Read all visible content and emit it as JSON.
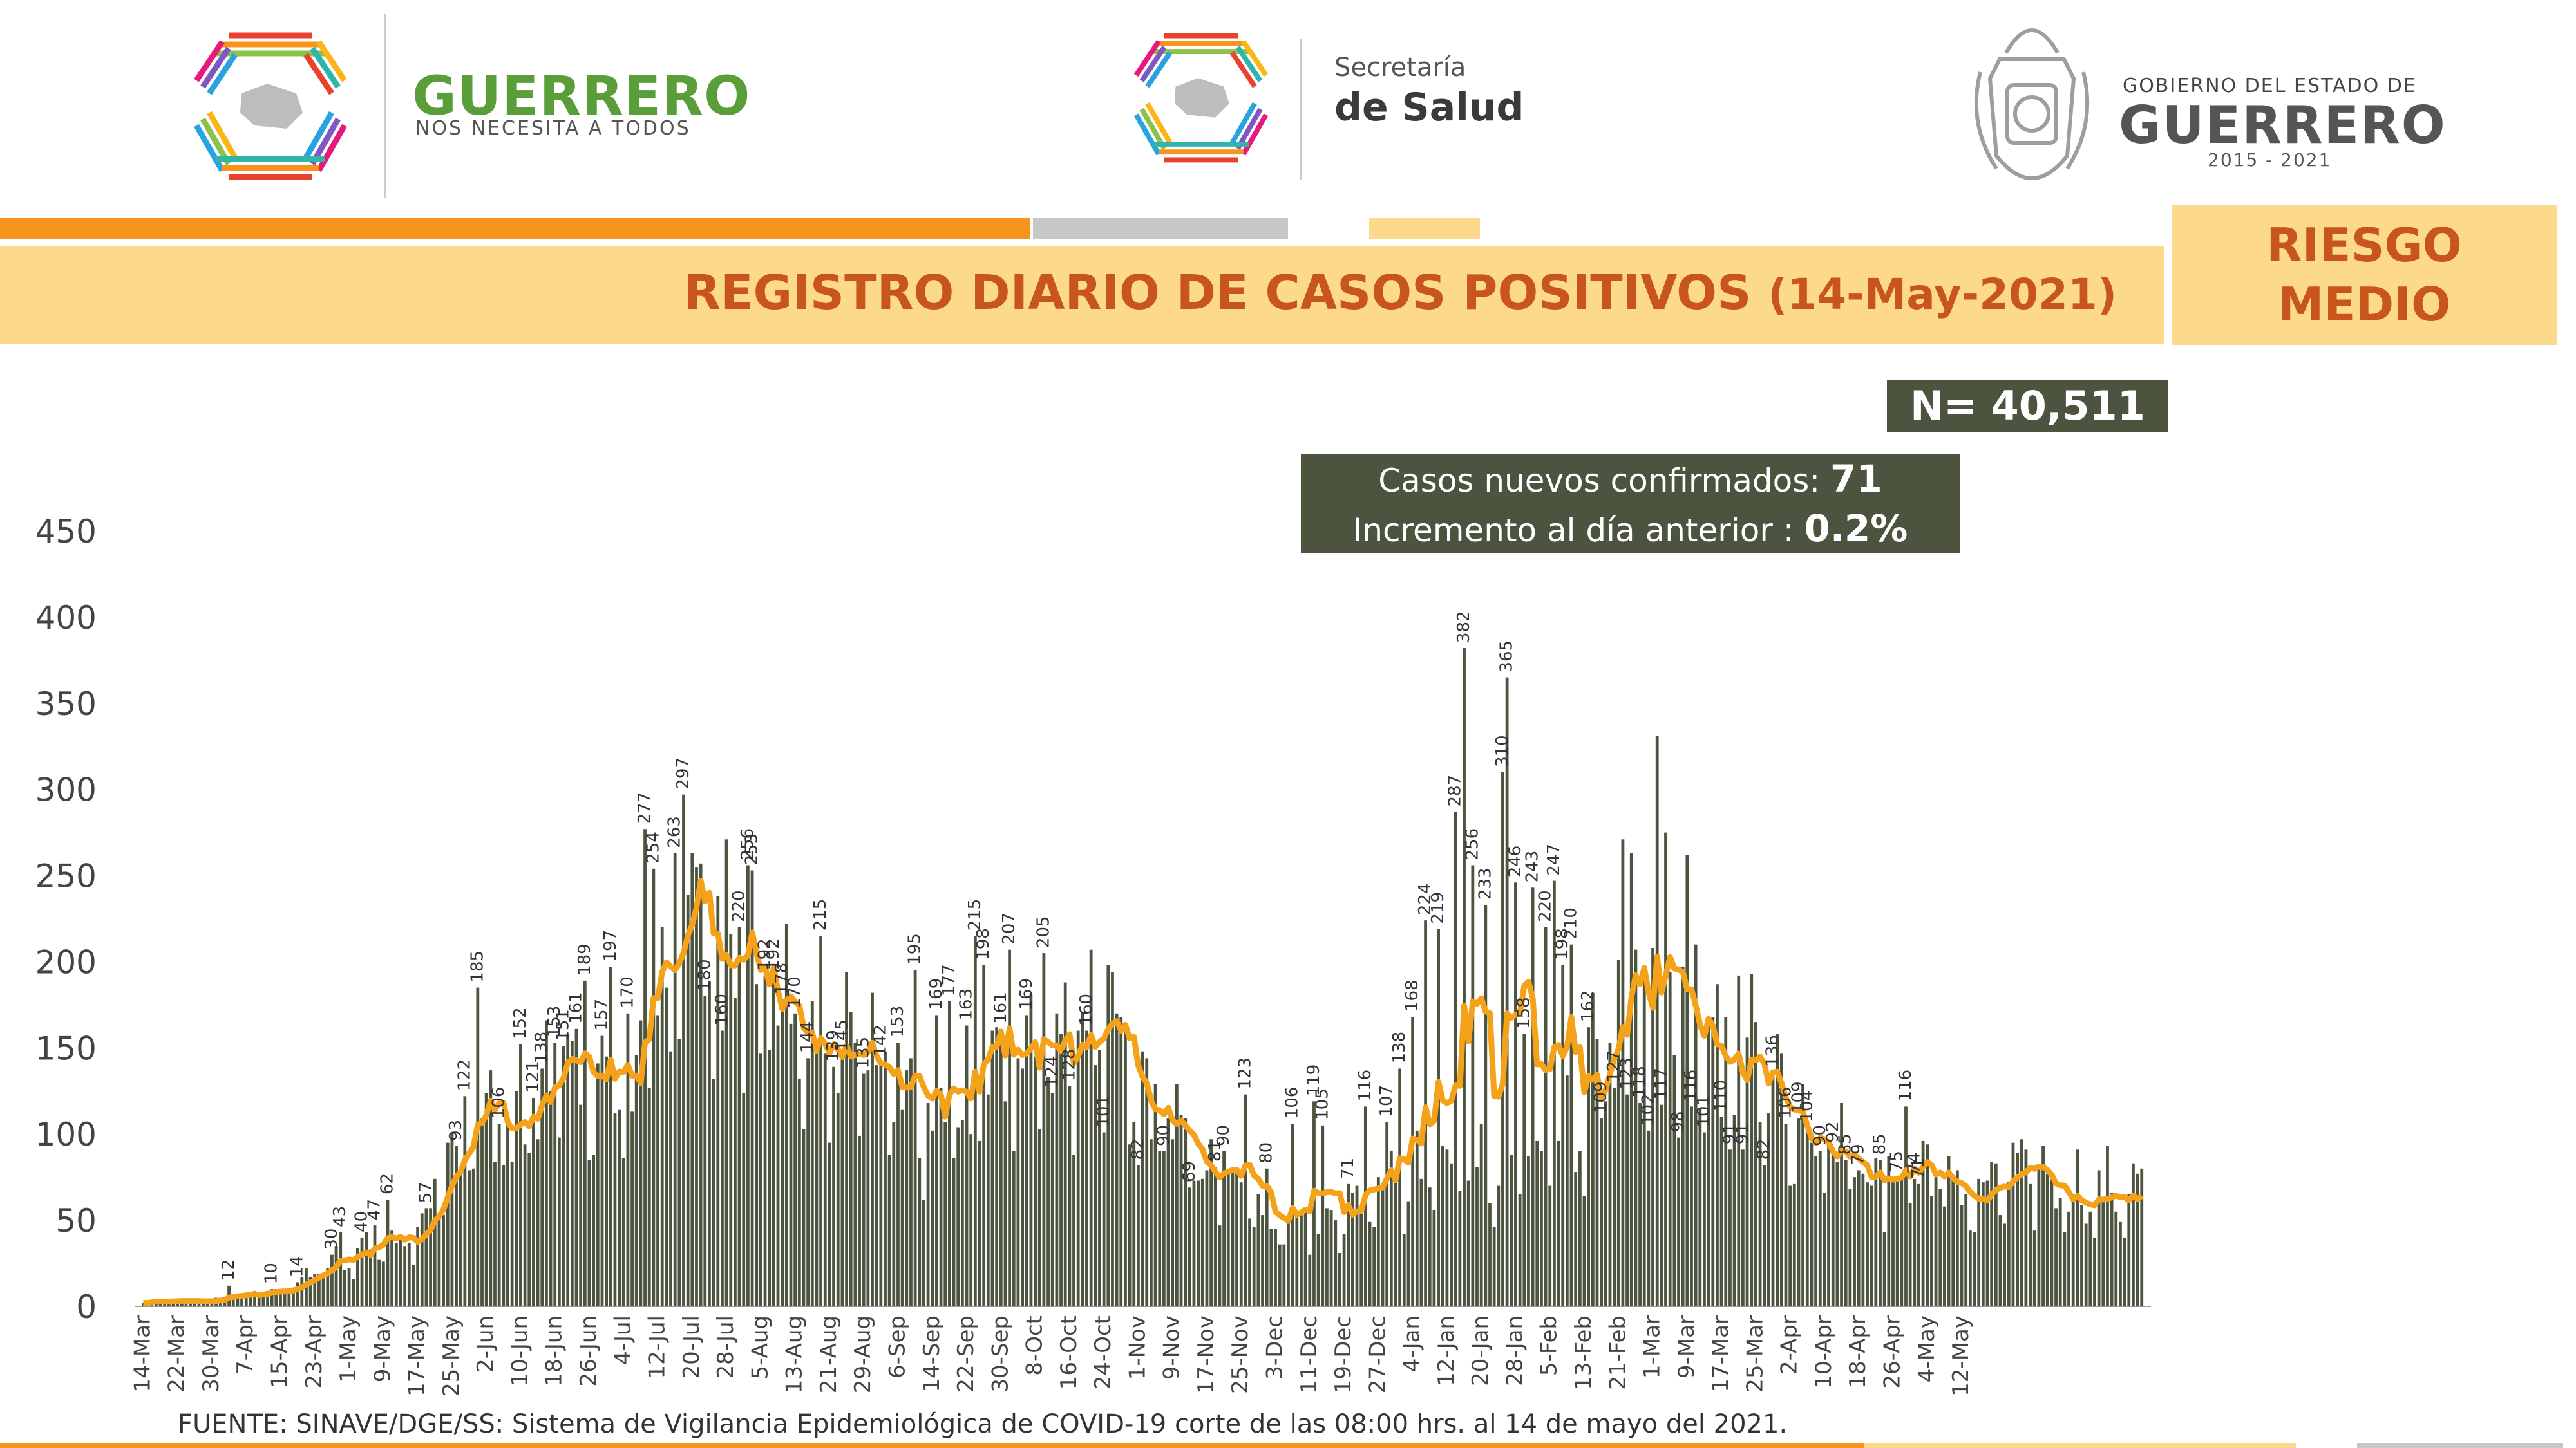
{
  "header": {
    "left_logo_line1": "GUERRERO",
    "left_logo_line2": "NOS NECESITA A TODOS",
    "center_logo_line1": "Secretaría",
    "center_logo_line2": "de Salud",
    "right_logo_line1": "GOBIERNO DEL ESTADO DE",
    "right_logo_line2": "GUERRERO",
    "right_logo_line3": "2015 - 2021"
  },
  "title": "REGISTRO DIARIO DE CASOS POSITIVOS",
  "title_date": "(14-May-2021)",
  "risk_line1": "RIESGO",
  "risk_line2": "MEDIO",
  "total_label": "N= 40,511",
  "new_cases_label": "Casos nuevos confirmados:",
  "new_cases_value": "71",
  "increase_label": "Incremento al día anterior :",
  "increase_value": "0.2%",
  "source": "FUENTE: SINAVE/DGE/SS: Sistema de Vigilancia Epidemiológica de COVID-19 corte de las 08:00 hrs. al 14 de mayo del 2021.",
  "colors": {
    "bar": "#4c5440",
    "moving_average": "#f5a21b",
    "accent_orange": "#f7941d",
    "title_text": "#c8561c",
    "band": "#fdd98c",
    "gray": "#c8c8c8"
  },
  "chart_data": {
    "type": "bar",
    "ylim": [
      0,
      450
    ],
    "yticks": [
      "0",
      "50",
      "100",
      "150",
      "200",
      "250",
      "300",
      "350",
      "400",
      "450"
    ],
    "x_tick_labels": [
      "14-Mar",
      "22-Mar",
      "30-Mar",
      "7-Apr",
      "15-Apr",
      "23-Apr",
      "1-May",
      "9-May",
      "17-May",
      "25-May",
      "2-Jun",
      "10-Jun",
      "18-Jun",
      "26-Jun",
      "4-Jul",
      "12-Jul",
      "20-Jul",
      "28-Jul",
      "5-Aug",
      "13-Aug",
      "21-Aug",
      "29-Aug",
      "6-Sep",
      "14-Sep",
      "22-Sep",
      "30-Sep",
      "8-Oct",
      "16-Oct",
      "24-Oct",
      "1-Nov",
      "9-Nov",
      "17-Nov",
      "25-Nov",
      "3-Dec",
      "11-Dec",
      "19-Dec",
      "27-Dec",
      "4-Jan",
      "12-Jan",
      "20-Jan",
      "28-Jan",
      "5-Feb",
      "13-Feb",
      "21-Feb",
      "1-Mar",
      "9-Mar",
      "17-Mar",
      "25-Mar",
      "2-Apr",
      "10-Apr",
      "18-Apr",
      "26-Apr",
      "4-May",
      "12-May"
    ],
    "start_date": "14-Mar",
    "end_date": "14-May",
    "anchors": [
      [
        0,
        2
      ],
      [
        7,
        3
      ],
      [
        14,
        3
      ],
      [
        21,
        5
      ],
      [
        28,
        8
      ],
      [
        35,
        12
      ],
      [
        42,
        22
      ],
      [
        49,
        28
      ],
      [
        56,
        38
      ],
      [
        63,
        45
      ],
      [
        70,
        72
      ],
      [
        77,
        110
      ],
      [
        84,
        95
      ],
      [
        91,
        100
      ],
      [
        98,
        125
      ],
      [
        105,
        140
      ],
      [
        112,
        125
      ],
      [
        119,
        145
      ],
      [
        126,
        205
      ],
      [
        133,
        225
      ],
      [
        140,
        185
      ],
      [
        147,
        150
      ],
      [
        154,
        175
      ],
      [
        161,
        148
      ],
      [
        168,
        135
      ],
      [
        175,
        120
      ],
      [
        182,
        95
      ],
      [
        189,
        110
      ],
      [
        196,
        125
      ],
      [
        203,
        130
      ],
      [
        210,
        140
      ],
      [
        217,
        160
      ],
      [
        224,
        155
      ],
      [
        231,
        130
      ],
      [
        238,
        98
      ],
      [
        245,
        85
      ],
      [
        252,
        65
      ],
      [
        259,
        55
      ],
      [
        266,
        50
      ],
      [
        273,
        45
      ],
      [
        280,
        50
      ],
      [
        287,
        62
      ],
      [
        294,
        68
      ],
      [
        301,
        72
      ],
      [
        308,
        78
      ],
      [
        315,
        85
      ],
      [
        322,
        70
      ],
      [
        329,
        80
      ],
      [
        336,
        110
      ],
      [
        343,
        170
      ],
      [
        350,
        240
      ],
      [
        357,
        230
      ],
      [
        364,
        180
      ],
      [
        371,
        192
      ],
      [
        378,
        135
      ],
      [
        385,
        100
      ],
      [
        392,
        95
      ],
      [
        399,
        85
      ],
      [
        406,
        65
      ],
      [
        413,
        80
      ],
      [
        420,
        72
      ],
      [
        427,
        60
      ],
      [
        434,
        70
      ],
      [
        441,
        75
      ],
      [
        448,
        68
      ],
      [
        455,
        62
      ],
      [
        462,
        65
      ],
      [
        466,
        65
      ]
    ],
    "labels": [
      [
        20,
        12
      ],
      [
        30,
        10
      ],
      [
        36,
        14
      ],
      [
        44,
        30
      ],
      [
        46,
        43
      ],
      [
        51,
        40
      ],
      [
        54,
        47
      ],
      [
        57,
        62
      ],
      [
        66,
        57
      ],
      [
        73,
        93
      ],
      [
        75,
        122
      ],
      [
        78,
        185
      ],
      [
        83,
        106
      ],
      [
        88,
        152
      ],
      [
        91,
        121
      ],
      [
        93,
        138
      ],
      [
        96,
        153
      ],
      [
        98,
        151
      ],
      [
        101,
        161
      ],
      [
        103,
        189
      ],
      [
        107,
        157
      ],
      [
        109,
        197
      ],
      [
        113,
        170
      ],
      [
        117,
        277
      ],
      [
        119,
        254
      ],
      [
        124,
        263
      ],
      [
        126,
        297
      ],
      [
        131,
        180
      ],
      [
        135,
        160
      ],
      [
        139,
        220
      ],
      [
        141,
        256
      ],
      [
        142,
        253
      ],
      [
        145,
        192
      ],
      [
        147,
        192
      ],
      [
        149,
        178
      ],
      [
        152,
        170
      ],
      [
        155,
        144
      ],
      [
        158,
        215
      ],
      [
        161,
        139
      ],
      [
        163,
        145
      ],
      [
        168,
        135
      ],
      [
        172,
        142
      ],
      [
        176,
        153
      ],
      [
        180,
        195
      ],
      [
        185,
        169
      ],
      [
        188,
        177
      ],
      [
        192,
        163
      ],
      [
        194,
        215
      ],
      [
        196,
        198
      ],
      [
        200,
        161
      ],
      [
        202,
        207
      ],
      [
        206,
        169
      ],
      [
        210,
        205
      ],
      [
        212,
        124
      ],
      [
        216,
        128
      ],
      [
        220,
        160
      ],
      [
        224,
        101
      ],
      [
        232,
        82
      ],
      [
        238,
        90
      ],
      [
        244,
        69
      ],
      [
        250,
        81
      ],
      [
        252,
        90
      ],
      [
        257,
        123
      ],
      [
        262,
        80
      ],
      [
        268,
        106
      ],
      [
        273,
        119
      ],
      [
        275,
        105
      ],
      [
        281,
        71
      ],
      [
        285,
        116
      ],
      [
        290,
        107
      ],
      [
        293,
        138
      ],
      [
        296,
        168
      ],
      [
        299,
        224
      ],
      [
        302,
        219
      ],
      [
        306,
        287
      ],
      [
        308,
        382
      ],
      [
        310,
        256
      ],
      [
        313,
        233
      ],
      [
        317,
        310
      ],
      [
        318,
        365
      ],
      [
        320,
        246
      ],
      [
        322,
        158
      ],
      [
        324,
        243
      ],
      [
        327,
        220
      ],
      [
        329,
        247
      ],
      [
        331,
        198
      ],
      [
        333,
        210
      ],
      [
        337,
        162
      ],
      [
        340,
        109
      ],
      [
        343,
        127
      ],
      [
        346,
        123
      ],
      [
        349,
        118
      ],
      [
        351,
        102
      ],
      [
        354,
        117
      ],
      [
        358,
        98
      ],
      [
        361,
        116
      ],
      [
        364,
        101
      ],
      [
        368,
        110
      ],
      [
        370,
        91
      ],
      [
        373,
        91
      ],
      [
        378,
        82
      ],
      [
        380,
        136
      ],
      [
        383,
        106
      ],
      [
        386,
        109
      ],
      [
        388,
        104
      ],
      [
        391,
        90
      ],
      [
        394,
        92
      ],
      [
        397,
        85
      ],
      [
        400,
        79
      ],
      [
        405,
        85
      ],
      [
        409,
        75
      ],
      [
        411,
        116
      ],
      [
        413,
        74
      ],
      [
        414,
        71
      ]
    ]
  }
}
